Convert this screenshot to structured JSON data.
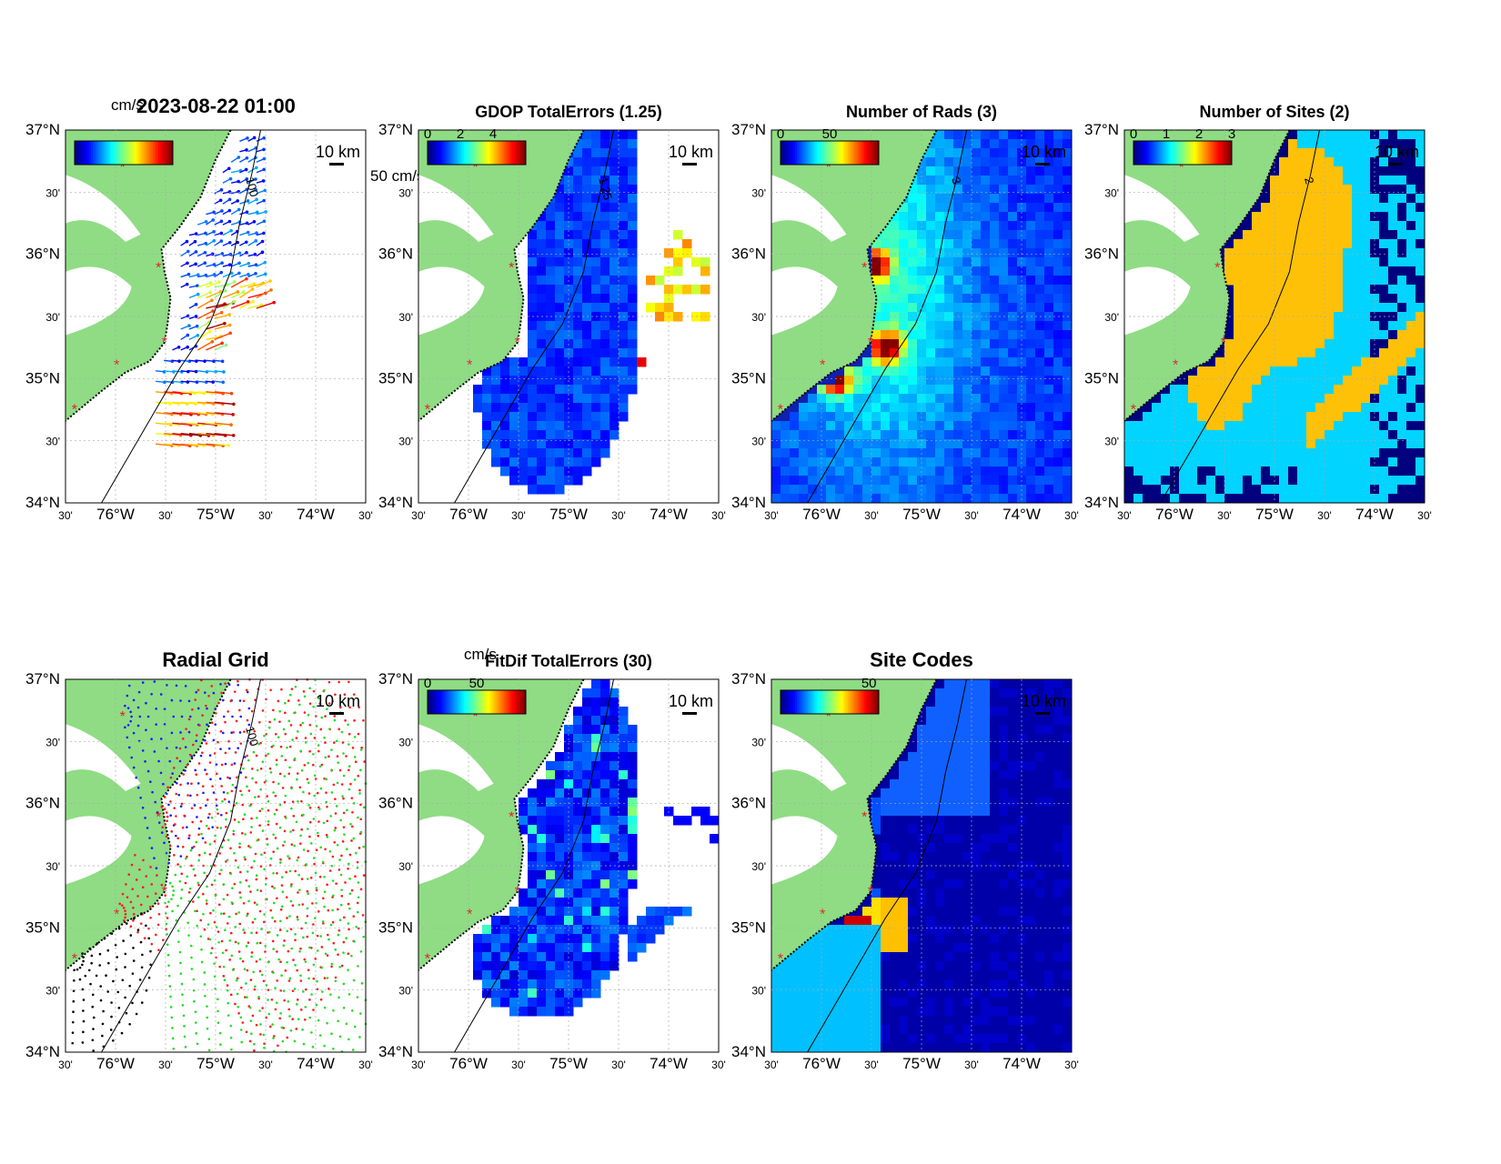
{
  "page_title": "2023-08-22 01:00",
  "lat_ticks": [
    "37°N",
    "30'",
    "36°N",
    "30'",
    "35°N",
    "30'",
    "34°N"
  ],
  "lon_ticks": [
    "30'",
    "76°W",
    "30'",
    "75°W",
    "30'",
    "74°W",
    "30'"
  ],
  "scale_bar_label": "10 km",
  "colors": {
    "land": "#8fdc84",
    "sites": "#e8192c",
    "contour": "#000000"
  },
  "panels": [
    {
      "id": "currents",
      "title": "",
      "colorbar": {
        "unit": "cm/s",
        "ticks": []
      },
      "extra_label": "50 cm/s",
      "contour_label": "100",
      "background": "white",
      "field": "vectors"
    },
    {
      "id": "gdop",
      "title": "GDOP TotalErrors (1.25)",
      "colorbar": {
        "unit": "",
        "ticks": [
          "0",
          "2",
          "4"
        ]
      },
      "contour_label": "1.25",
      "background": "white",
      "field": "gdop"
    },
    {
      "id": "nrads",
      "title": "Number of Rads (3)",
      "colorbar": {
        "unit": "",
        "ticks": [
          "0",
          "50"
        ]
      },
      "contour_label": "3",
      "background": "#1020b0",
      "field": "nrads"
    },
    {
      "id": "nsites",
      "title": "Number of Sites (2)",
      "colorbar": {
        "unit": "",
        "ticks": [
          "0",
          "1",
          "2",
          "3"
        ]
      },
      "contour_label": "2",
      "background": "#00007f",
      "field": "nsites"
    },
    {
      "id": "radgrid",
      "title": "Radial Grid",
      "colorbar": null,
      "contour_label": "100",
      "background": "white",
      "field": "radgrid"
    },
    {
      "id": "fitdif",
      "title": "FitDif TotalErrors (30)",
      "colorbar": {
        "unit": "cm/s",
        "ticks": [
          "0",
          "50"
        ]
      },
      "contour_label": "",
      "background": "white",
      "field": "fitdif"
    },
    {
      "id": "sitecodes",
      "title": "Site Codes",
      "colorbar": {
        "unit": "",
        "ticks": [
          "50"
        ]
      },
      "contour_label": "",
      "background": "#0000a0",
      "field": "sitecodes"
    }
  ]
}
